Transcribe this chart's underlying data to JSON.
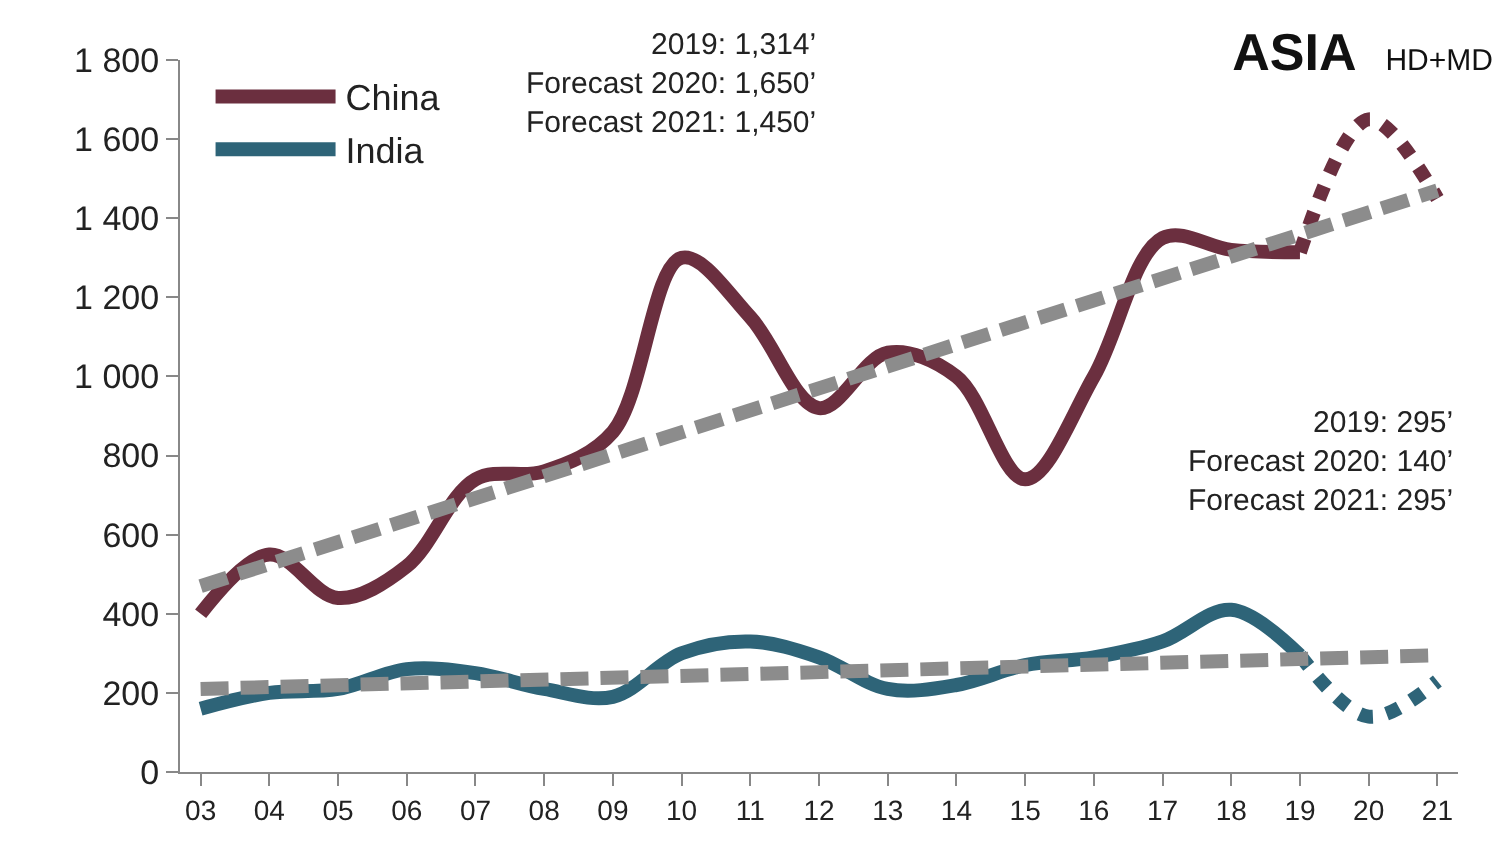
{
  "chart_data": {
    "type": "line",
    "title": "ASIA",
    "subtitle": "HD+MD",
    "categories": [
      "03",
      "04",
      "05",
      "06",
      "07",
      "08",
      "09",
      "10",
      "11",
      "12",
      "13",
      "14",
      "15",
      "16",
      "17",
      "18",
      "19",
      "20",
      "21"
    ],
    "series": [
      {
        "name": "China",
        "color": "#6b2f3f",
        "values": [
          400,
          550,
          440,
          520,
          740,
          760,
          860,
          1300,
          1150,
          920,
          1060,
          1000,
          740,
          1000,
          1350,
          1320,
          1314,
          null,
          null
        ]
      },
      {
        "color": "#6b2f3f",
        "line_style": "dotted",
        "values": [
          null,
          null,
          null,
          null,
          null,
          null,
          null,
          null,
          null,
          null,
          null,
          null,
          null,
          null,
          null,
          null,
          1314,
          1650,
          1450
        ]
      },
      {
        "name": "India",
        "color": "#2e6478",
        "values": [
          160,
          200,
          210,
          260,
          250,
          210,
          190,
          300,
          330,
          290,
          210,
          220,
          270,
          290,
          330,
          410,
          295,
          null,
          null
        ]
      },
      {
        "color": "#2e6478",
        "line_style": "dotted",
        "values": [
          null,
          null,
          null,
          null,
          null,
          null,
          null,
          null,
          null,
          null,
          null,
          null,
          null,
          null,
          null,
          null,
          295,
          140,
          230
        ]
      },
      {
        "color": "#8c8c8c",
        "line_style": "dashed",
        "values": [
          470,
          null,
          null,
          null,
          null,
          null,
          null,
          null,
          null,
          null,
          null,
          null,
          null,
          null,
          null,
          null,
          null,
          null,
          1470
        ]
      },
      {
        "color": "#8c8c8c",
        "line_style": "dashed",
        "values": [
          210,
          null,
          null,
          null,
          null,
          null,
          null,
          null,
          null,
          null,
          null,
          null,
          null,
          null,
          null,
          null,
          null,
          null,
          295
        ]
      }
    ],
    "ylim": [
      0,
      1800
    ],
    "yticks": [
      0,
      200,
      400,
      600,
      800,
      {
        "value": 1000,
        "label": "1 000"
      },
      {
        "value": 1200,
        "label": "1 200"
      },
      {
        "value": 1400,
        "label": "1 400"
      },
      {
        "value": 1600,
        "label": "1 600"
      },
      {
        "value": 1800,
        "label": "1 800"
      }
    ],
    "legend": "top left",
    "marker": "none",
    "line_style": "solid",
    "annotations": [
      "2019: 1,314’\nForecast 2020: 1,650’\nForecast 2021: 1,450’",
      "2019: 295’\nForecast 2020: 140’\nForecast 2021: 295’"
    ]
  }
}
